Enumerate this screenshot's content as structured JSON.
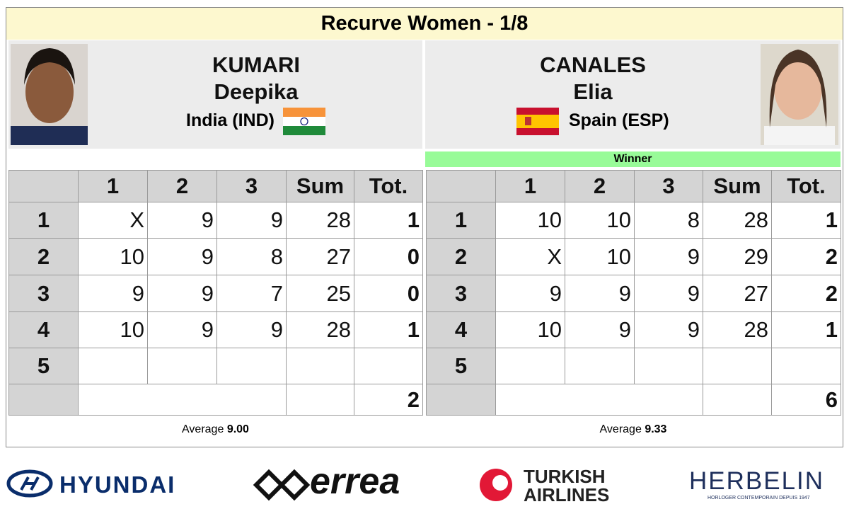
{
  "header": {
    "title": "Recurve Women - 1/8"
  },
  "players": [
    {
      "surname": "KUMARI",
      "given_name": "Deepika",
      "country": "India (IND)"
    },
    {
      "surname": "CANALES",
      "given_name": "Elia",
      "country": "Spain (ESP)",
      "status": "Winner"
    }
  ],
  "score_tables": [
    {
      "columns": [
        "1",
        "2",
        "3",
        "Sum",
        "Tot."
      ],
      "rows": [
        {
          "label": "1",
          "arrows": [
            "X",
            9,
            9
          ],
          "sum": 28,
          "points": 1
        },
        {
          "label": "2",
          "arrows": [
            10,
            9,
            8
          ],
          "sum": 27,
          "points": 0
        },
        {
          "label": "3",
          "arrows": [
            9,
            9,
            7
          ],
          "sum": 25,
          "points": 0
        },
        {
          "label": "4",
          "arrows": [
            10,
            9,
            9
          ],
          "sum": 28,
          "points": 1
        },
        {
          "label": "5"
        }
      ],
      "total": 2,
      "average_label": "Average",
      "average": "9.00"
    },
    {
      "columns": [
        "1",
        "2",
        "3",
        "Sum",
        "Tot."
      ],
      "rows": [
        {
          "label": "1",
          "arrows": [
            10,
            10,
            8
          ],
          "sum": 28,
          "points": 1
        },
        {
          "label": "2",
          "arrows": [
            "X",
            10,
            9
          ],
          "sum": 29,
          "points": 2
        },
        {
          "label": "3",
          "arrows": [
            9,
            9,
            9
          ],
          "sum": 27,
          "points": 2
        },
        {
          "label": "4",
          "arrows": [
            10,
            9,
            9
          ],
          "sum": 28,
          "points": 1
        },
        {
          "label": "5"
        }
      ],
      "total": 6,
      "average_label": "Average",
      "average": "9.33"
    }
  ],
  "sponsors": {
    "hyundai": "HYUNDAI",
    "errea": "errea",
    "turkish_1": "TURKISH",
    "turkish_2": "AIRLINES",
    "herbelin": "HERBELIN",
    "herbelin_tagline": "HORLOGER CONTEMPORAIN DEPUIS 1947"
  }
}
